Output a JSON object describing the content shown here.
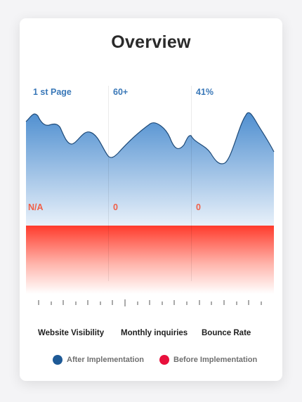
{
  "title": "Overview",
  "colors": {
    "after": "#1e5a96",
    "after_fill_top": "#4f8fd0",
    "before": "#ff3d2e",
    "before_dot": "#e8103c"
  },
  "chart_data": {
    "type": "area",
    "categories": [
      "Website Visibility",
      "Monthly inquiries",
      "Bounce Rate"
    ],
    "series": [
      {
        "name": "After Implementation",
        "values": [
          "1 st Page",
          "60+",
          "41%"
        ]
      },
      {
        "name": "Before Implementation",
        "values": [
          "N/A",
          "0",
          "0"
        ]
      }
    ],
    "legend": "bottom",
    "grid": true
  },
  "legend": {
    "after_label": "After Implementation",
    "before_label": "Before Implementation"
  }
}
